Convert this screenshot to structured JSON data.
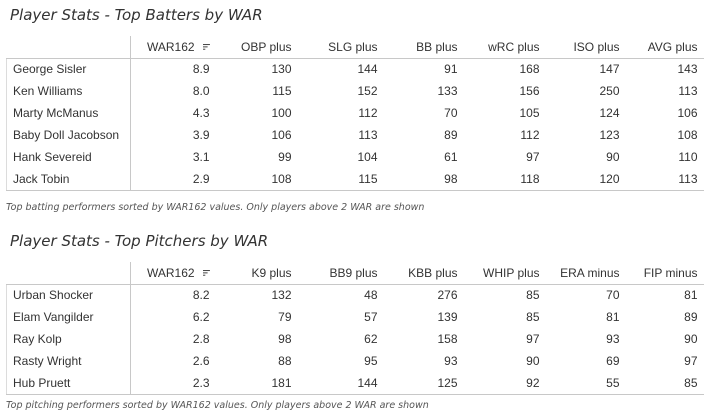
{
  "batters": {
    "title": "Player Stats - Top Batters by WAR",
    "columns": [
      "WAR162",
      "OBP plus",
      "SLG plus",
      "BB plus",
      "wRC plus",
      "ISO plus",
      "AVG plus"
    ],
    "rows": [
      {
        "name": "George Sisler",
        "values": [
          "8.9",
          "130",
          "144",
          "91",
          "168",
          "147",
          "143"
        ]
      },
      {
        "name": "Ken Williams",
        "values": [
          "8.0",
          "115",
          "152",
          "133",
          "156",
          "250",
          "113"
        ]
      },
      {
        "name": "Marty McManus",
        "values": [
          "4.3",
          "100",
          "112",
          "70",
          "105",
          "124",
          "106"
        ]
      },
      {
        "name": "Baby Doll Jacobson",
        "values": [
          "3.9",
          "106",
          "113",
          "89",
          "112",
          "123",
          "108"
        ]
      },
      {
        "name": "Hank Severeid",
        "values": [
          "3.1",
          "99",
          "104",
          "61",
          "97",
          "90",
          "110"
        ]
      },
      {
        "name": "Jack Tobin",
        "values": [
          "2.9",
          "108",
          "115",
          "98",
          "118",
          "120",
          "113"
        ]
      }
    ],
    "caption": "Top batting performers sorted by WAR162 values. Only players above 2 WAR are shown"
  },
  "pitchers": {
    "title": "Player Stats - Top Pitchers by WAR",
    "columns": [
      "WAR162",
      "K9 plus",
      "BB9 plus",
      "KBB plus",
      "WHIP plus",
      "ERA minus",
      "FIP minus"
    ],
    "rows": [
      {
        "name": "Urban Shocker",
        "values": [
          "8.2",
          "132",
          "48",
          "276",
          "85",
          "70",
          "81"
        ]
      },
      {
        "name": "Elam Vangilder",
        "values": [
          "6.2",
          "79",
          "57",
          "139",
          "85",
          "81",
          "89"
        ]
      },
      {
        "name": "Ray Kolp",
        "values": [
          "2.8",
          "98",
          "62",
          "158",
          "97",
          "93",
          "90"
        ]
      },
      {
        "name": "Rasty Wright",
        "values": [
          "2.6",
          "88",
          "95",
          "93",
          "90",
          "69",
          "97"
        ]
      },
      {
        "name": "Hub Pruett",
        "values": [
          "2.3",
          "181",
          "144",
          "125",
          "92",
          "55",
          "85"
        ]
      }
    ],
    "caption": "Top pitching performers sorted by WAR162 values. Only players above 2 WAR are shown"
  },
  "sort_icon": "sort-descending-icon"
}
